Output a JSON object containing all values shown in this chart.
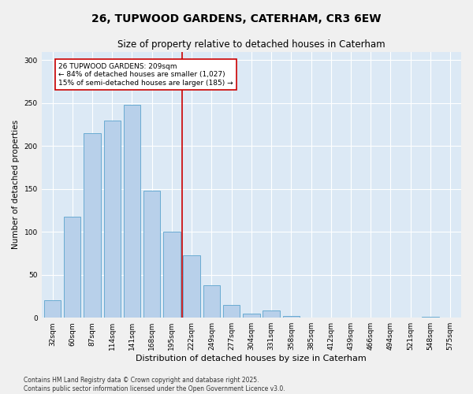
{
  "title": "26, TUPWOOD GARDENS, CATERHAM, CR3 6EW",
  "subtitle": "Size of property relative to detached houses in Caterham",
  "xlabel": "Distribution of detached houses by size in Caterham",
  "ylabel": "Number of detached properties",
  "categories": [
    "32sqm",
    "60sqm",
    "87sqm",
    "114sqm",
    "141sqm",
    "168sqm",
    "195sqm",
    "222sqm",
    "249sqm",
    "277sqm",
    "304sqm",
    "331sqm",
    "358sqm",
    "385sqm",
    "412sqm",
    "439sqm",
    "466sqm",
    "494sqm",
    "521sqm",
    "548sqm",
    "575sqm"
  ],
  "values": [
    20,
    118,
    215,
    230,
    248,
    148,
    100,
    73,
    38,
    15,
    5,
    8,
    2,
    0,
    0,
    0,
    0,
    0,
    0,
    1,
    0
  ],
  "bar_color": "#b8d0ea",
  "bar_edgecolor": "#6aabd2",
  "vline_x": 6.5,
  "vline_color": "#cc0000",
  "annotation_text": "26 TUPWOOD GARDENS: 209sqm\n← 84% of detached houses are smaller (1,027)\n15% of semi-detached houses are larger (185) →",
  "annotation_box_color": "#ffffff",
  "annotation_box_edgecolor": "#cc0000",
  "ylim": [
    0,
    310
  ],
  "yticks": [
    0,
    50,
    100,
    150,
    200,
    250,
    300
  ],
  "background_color": "#dce9f5",
  "fig_background_color": "#f0f0f0",
  "footer_text": "Contains HM Land Registry data © Crown copyright and database right 2025.\nContains public sector information licensed under the Open Government Licence v3.0.",
  "title_fontsize": 10,
  "subtitle_fontsize": 8.5,
  "xlabel_fontsize": 8,
  "ylabel_fontsize": 7.5,
  "tick_fontsize": 6.5,
  "annotation_fontsize": 6.5,
  "footer_fontsize": 5.5
}
